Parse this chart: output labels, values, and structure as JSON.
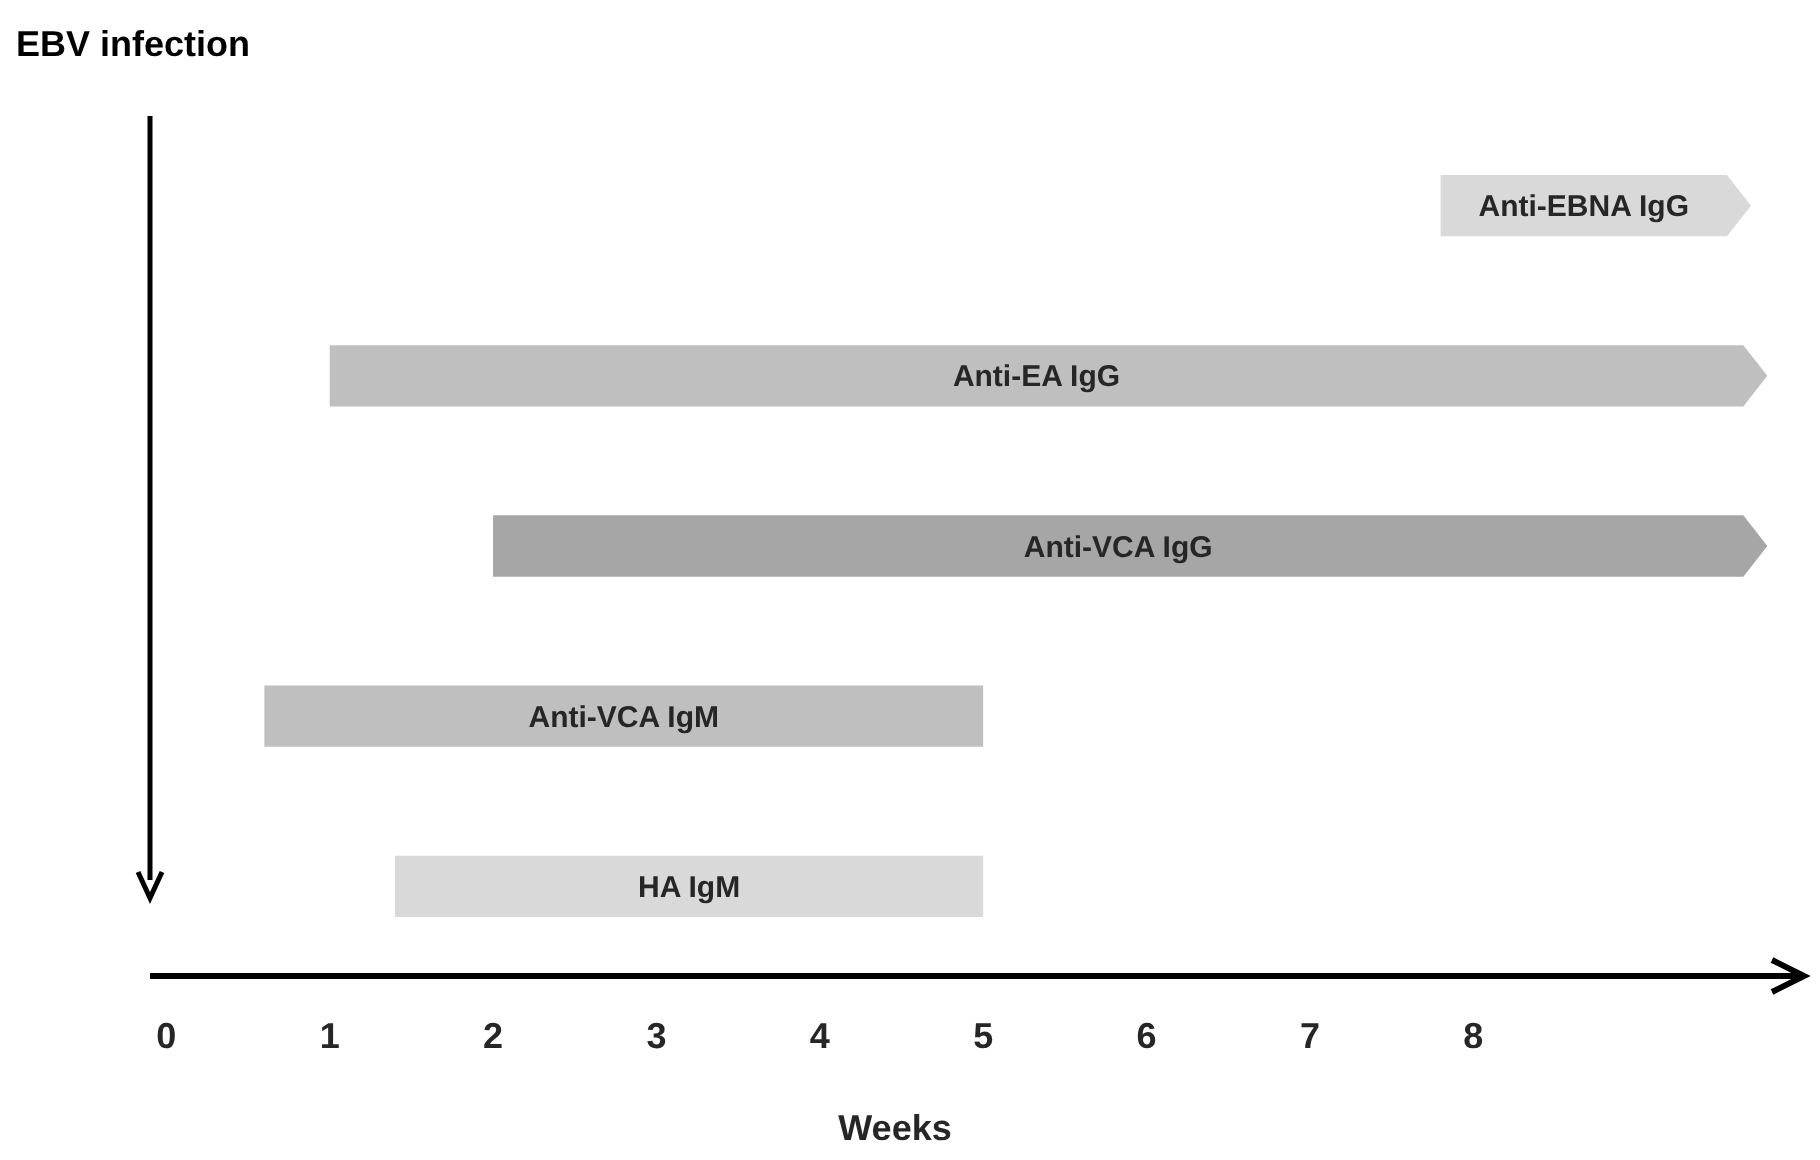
{
  "chart_data": {
    "type": "bar",
    "orientation": "horizontal",
    "xlabel": "Weeks",
    "categories": [
      "Anti-EBNA IgG",
      "Anti-EA IgG",
      "Anti-VCA IgG",
      "Anti-VCA IgM",
      "HA IgM"
    ],
    "base": [
      7.8,
      1,
      2,
      0.6,
      1.4
    ],
    "values": [
      1.9,
      8.8,
      7.8,
      4.4,
      3.6
    ],
    "colors": [
      "#d9d9d9",
      "#bfbfbf",
      "#a6a6a6",
      "#bfbfbf",
      "#d9d9d9"
    ],
    "xlim": [
      -0.1,
      10
    ],
    "xticks": [
      0,
      1,
      2,
      3,
      4,
      5,
      6,
      7,
      8
    ],
    "ref_lines": [
      {
        "axis": "x",
        "value": -0.1,
        "label": "EBV infection",
        "color": "#000000"
      }
    ],
    "grid": false
  }
}
